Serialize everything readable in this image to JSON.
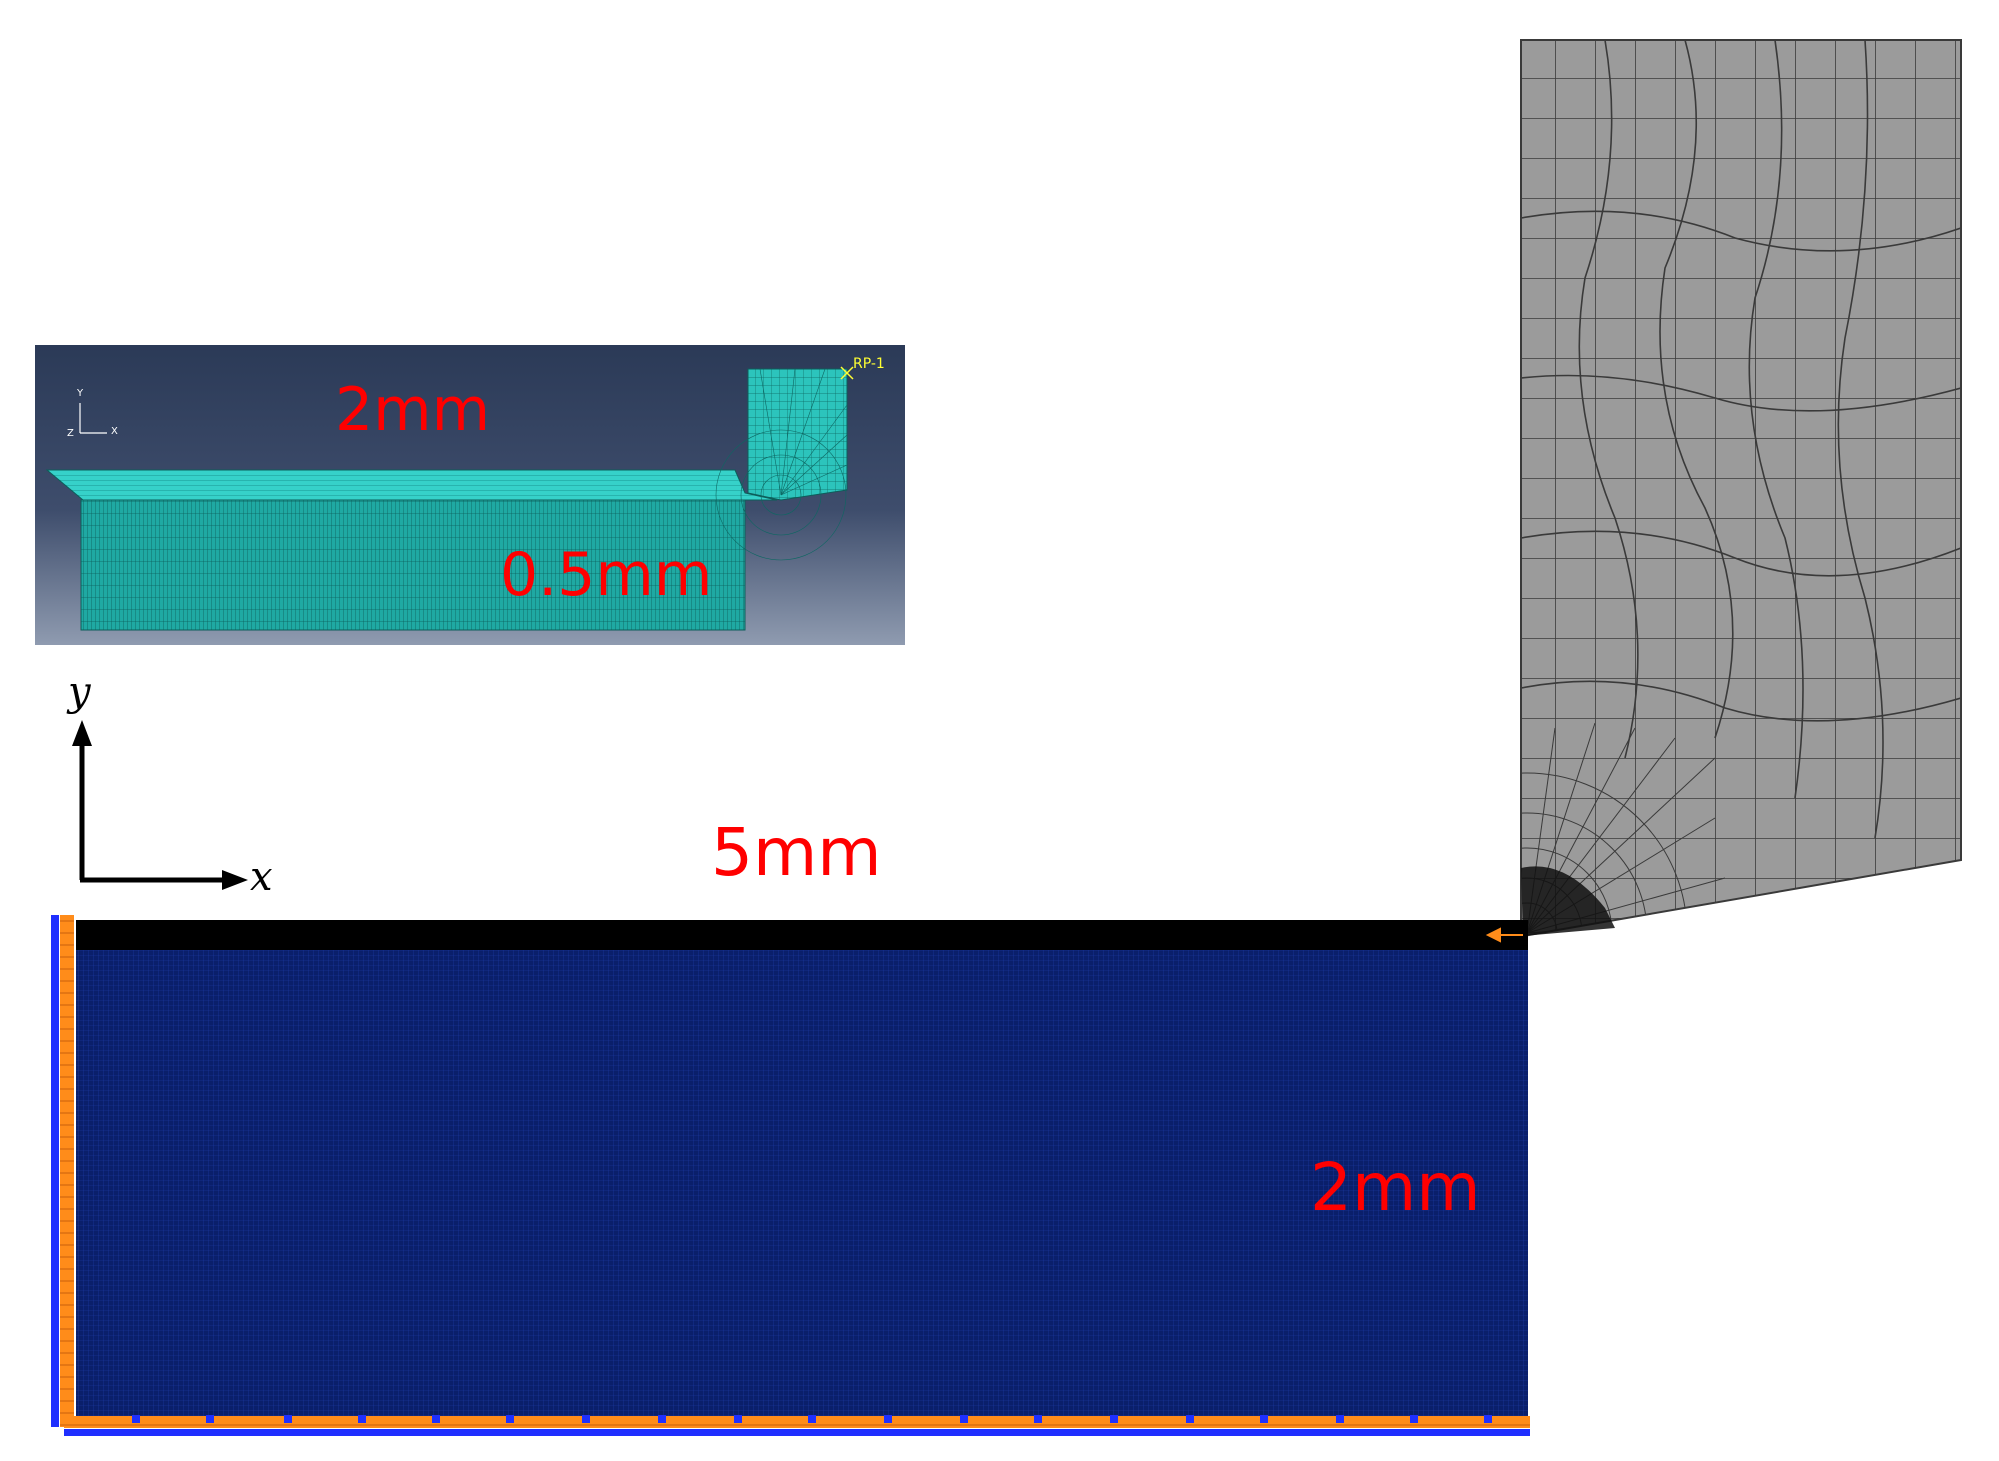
{
  "labels": {
    "length": "5mm",
    "height": "2mm",
    "inset_width": "2mm",
    "inset_depth": "0.5mm"
  },
  "axes": {
    "x": "x",
    "y": "y"
  },
  "inset": {
    "axis_x": "X",
    "axis_y": "Y",
    "axis_z": "Z",
    "reference_point": "RP-1"
  },
  "colors": {
    "mesh_fill": "#0a1f6b",
    "mesh_line": "#1e3ca8",
    "top_layer": "#000000",
    "boundary_orange": "#ff8c1a",
    "boundary_blue": "#1f2fff",
    "tool_fill": "#9b9b9b",
    "tool_line": "#3a3a3a",
    "dimension_text": "#ff0000",
    "inset_bg_top": "#2b3a57",
    "inset_bg_bottom": "#8f9bb0",
    "inset_mesh": "#2fc7c0"
  }
}
